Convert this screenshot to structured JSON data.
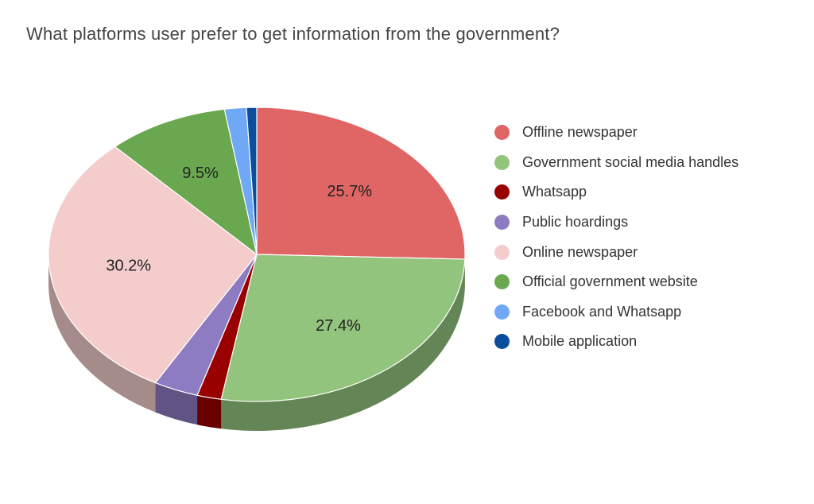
{
  "chart_data": {
    "type": "pie",
    "title": "What platforms user prefer to get information from the government?",
    "style": "3d",
    "legend_position": "right",
    "slices": [
      {
        "label": "Offline newspaper",
        "value": 25.7,
        "data_label": "25.7%",
        "color": "#e06666"
      },
      {
        "label": "Government social media handles",
        "value": 27.4,
        "data_label": "27.4%",
        "color": "#93c47d"
      },
      {
        "label": "Whatsapp",
        "value": 1.9,
        "data_label": "",
        "color": "#990000"
      },
      {
        "label": "Public hoardings",
        "value": 3.5,
        "data_label": "",
        "color": "#8e7cc3"
      },
      {
        "label": "Online newspaper",
        "value": 30.2,
        "data_label": "30.2%",
        "color": "#f4cccc"
      },
      {
        "label": "Official government website",
        "value": 9.5,
        "data_label": "9.5%",
        "color": "#6aa84f"
      },
      {
        "label": "Facebook and Whatsapp",
        "value": 1.7,
        "data_label": "",
        "color": "#6fa8f5"
      },
      {
        "label": "Mobile application",
        "value": 0.8,
        "data_label": "",
        "color": "#0b4f9c"
      }
    ]
  }
}
